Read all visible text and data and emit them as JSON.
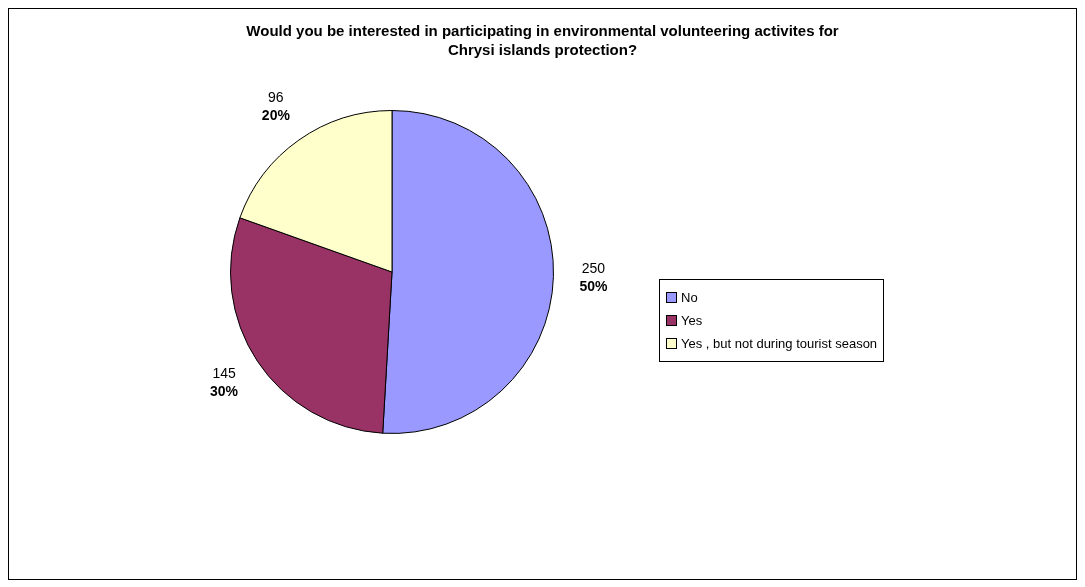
{
  "chart_data": {
    "type": "pie",
    "title": "Would you be interested in participating in environmental volunteering activites for Chrysi islands protection?",
    "categories": [
      "No",
      "Yes",
      "Yes , but not during tourist season"
    ],
    "values": [
      250,
      145,
      96
    ],
    "colors": [
      "#9999ff",
      "#993366",
      "#ffffcc"
    ],
    "value_labels": [
      "250\n50%",
      "145\n30%",
      "96\n20%"
    ],
    "legend": "right"
  }
}
